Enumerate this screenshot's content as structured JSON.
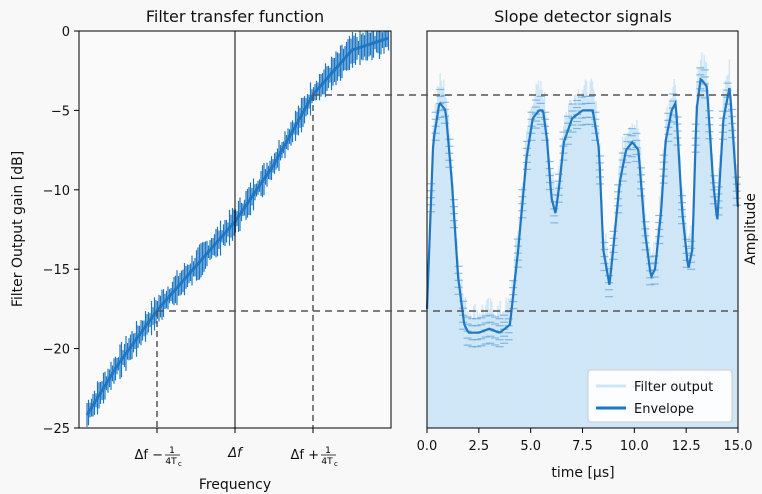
{
  "chart_data": [
    {
      "type": "line",
      "title": "Filter transfer function",
      "xlabel": "Frequency",
      "ylabel": "Filter Output gain [dB]",
      "ylim": [
        -25,
        0
      ],
      "yticks": [
        0,
        -5,
        -10,
        -15,
        -20,
        -25
      ],
      "ytick_labels": [
        "0",
        "−5",
        "−10",
        "−15",
        "−20",
        "−25"
      ],
      "xtick_labels": [
        "Δf − 1/4Tc",
        "Δf",
        "Δf + 1/4Tc"
      ],
      "xtick_parts": {
        "minus": {
          "main": "Δf − ",
          "num": "1",
          "den": "4T",
          "sub": "c"
        },
        "center": {
          "main": "Δf"
        },
        "plus": {
          "main": "Δf + ",
          "num": "1",
          "den": "4T",
          "sub": "c"
        }
      },
      "x": [
        -2.0,
        -1.5,
        -1.0,
        -0.5,
        0.0,
        0.5,
        1.0,
        1.5,
        2.0
      ],
      "series": [
        {
          "values": [
            -25.0,
            -21.0,
            -17.6,
            -14.8,
            -12.0,
            -8.4,
            -4.0,
            -1.2,
            -0.4
          ]
        }
      ],
      "reference_lines": {
        "gain_high": -4.0,
        "gain_low": -17.6
      },
      "color": "#1f77c4"
    },
    {
      "type": "line",
      "title": "Slope detector signals",
      "xlabel": "time [μs]",
      "ylabel": "Amplitude",
      "xlim": [
        0,
        15
      ],
      "xticks": [
        0,
        2.5,
        5.0,
        7.5,
        10.0,
        12.5,
        15.0
      ],
      "xtick_labels": [
        "0.0",
        "2.5",
        "5.0",
        "7.5",
        "10.0",
        "12.5",
        "15.0"
      ],
      "legend": {
        "position": "bottom-right",
        "entries": [
          "Filter output",
          "Envelope"
        ]
      },
      "series": [
        {
          "name": "Envelope",
          "color": "#1f77c4",
          "x": [
            0,
            0.3,
            0.6,
            0.9,
            1.2,
            1.5,
            1.8,
            2.0,
            2.5,
            3.0,
            3.5,
            4.0,
            4.4,
            4.8,
            5.1,
            5.4,
            5.6,
            5.8,
            6.0,
            6.2,
            6.4,
            6.6,
            7.0,
            7.5,
            8.0,
            8.3,
            8.5,
            8.8,
            9.0,
            9.3,
            9.6,
            9.9,
            10.2,
            10.5,
            10.8,
            11.0,
            11.3,
            11.5,
            11.8,
            12.0,
            12.3,
            12.6,
            12.8,
            13.0,
            13.2,
            13.5,
            13.8,
            14.0,
            14.3,
            14.6,
            15.0
          ],
          "values": [
            0.3,
            0.72,
            0.82,
            0.8,
            0.62,
            0.38,
            0.26,
            0.24,
            0.24,
            0.25,
            0.24,
            0.26,
            0.45,
            0.68,
            0.78,
            0.8,
            0.8,
            0.72,
            0.58,
            0.54,
            0.62,
            0.72,
            0.78,
            0.8,
            0.8,
            0.7,
            0.45,
            0.36,
            0.46,
            0.62,
            0.7,
            0.72,
            0.7,
            0.5,
            0.38,
            0.4,
            0.55,
            0.72,
            0.8,
            0.82,
            0.55,
            0.4,
            0.45,
            0.8,
            0.88,
            0.86,
            0.62,
            0.52,
            0.78,
            0.86,
            0.55
          ]
        },
        {
          "name": "Filter output",
          "color": "#cfe6f7",
          "fill": true
        }
      ],
      "reference_lines": {
        "level_high": 0.86,
        "level_low": 0.3
      }
    }
  ]
}
